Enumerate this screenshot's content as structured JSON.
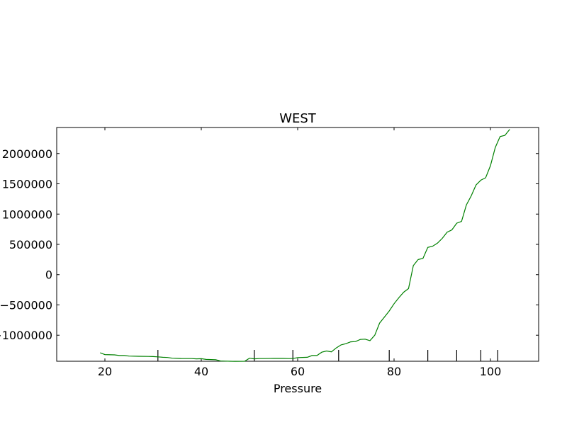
{
  "chart_data": {
    "type": "line",
    "title": "WEST",
    "xlabel": "Pressure",
    "ylabel": "",
    "xlim": [
      10,
      110
    ],
    "ylim": [
      -1430000,
      2430000
    ],
    "xticks": [
      20,
      40,
      60,
      80,
      100
    ],
    "yticks": [
      2000000,
      1500000,
      1000000,
      500000,
      0,
      -500000,
      -1000000
    ],
    "ytick_labels": [
      "2000000",
      "1500000",
      "1000000",
      "500000",
      "0",
      "−500000",
      "−1000000"
    ],
    "grid": false,
    "series": [
      {
        "color": "#008000",
        "x": [
          19,
          20,
          22,
          23,
          24,
          25,
          27,
          29,
          30,
          31,
          32,
          33,
          34,
          36,
          38,
          39,
          40,
          41,
          43,
          44,
          45,
          46,
          47,
          49,
          50,
          51,
          52,
          53,
          55,
          57,
          58,
          59,
          60,
          62,
          63,
          64,
          65,
          66,
          67,
          68,
          69,
          70,
          71,
          72,
          73,
          74,
          75,
          76,
          77,
          78,
          79,
          80,
          81,
          82,
          83,
          84,
          85,
          86,
          87,
          88,
          89,
          90,
          91,
          92,
          93,
          94,
          95,
          96,
          97,
          98,
          99,
          100,
          101,
          102,
          103,
          104
        ],
        "y": [
          -1290000,
          -1320000,
          -1325000,
          -1335000,
          -1335000,
          -1345000,
          -1348000,
          -1350000,
          -1353000,
          -1358000,
          -1365000,
          -1368000,
          -1380000,
          -1385000,
          -1385000,
          -1390000,
          -1388000,
          -1400000,
          -1405000,
          -1425000,
          -1428000,
          -1430000,
          -1432000,
          -1430000,
          -1380000,
          -1390000,
          -1385000,
          -1385000,
          -1383000,
          -1383000,
          -1385000,
          -1385000,
          -1370000,
          -1365000,
          -1335000,
          -1335000,
          -1280000,
          -1260000,
          -1275000,
          -1210000,
          -1160000,
          -1140000,
          -1110000,
          -1105000,
          -1070000,
          -1065000,
          -1090000,
          -1000000,
          -800000,
          -700000,
          -600000,
          -480000,
          -380000,
          -290000,
          -230000,
          150000,
          250000,
          270000,
          450000,
          470000,
          520000,
          600000,
          700000,
          740000,
          850000,
          880000,
          1150000,
          1300000,
          1480000,
          1560000,
          1600000,
          1800000,
          2100000,
          2280000,
          2300000,
          2400000
        ]
      }
    ]
  }
}
